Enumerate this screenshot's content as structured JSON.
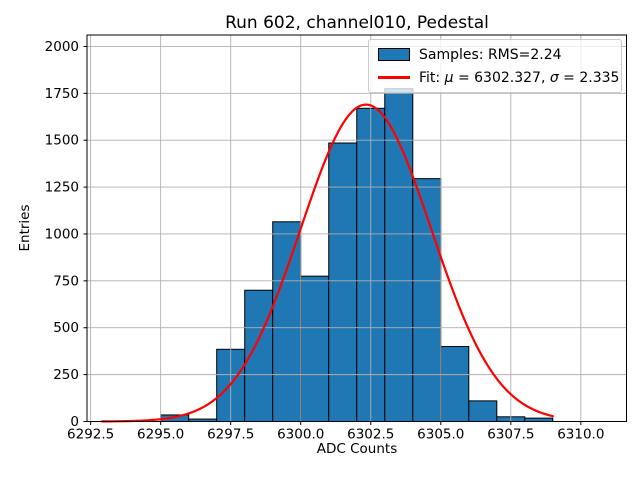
{
  "chart_data": {
    "type": "bar",
    "subtype": "histogram-with-gaussian-fit",
    "title": "Run 602, channel010, Pedestal",
    "xlabel": "ADC Counts",
    "ylabel": "Entries",
    "xlim": [
      6292.37,
      6311.63
    ],
    "ylim": [
      0,
      2061
    ],
    "xticks": [
      6292.5,
      6295.0,
      6297.5,
      6300.0,
      6302.5,
      6305.0,
      6307.5,
      6310.0
    ],
    "xtick_labels": [
      "6292.5",
      "6295.0",
      "6297.5",
      "6300.0",
      "6302.5",
      "6305.0",
      "6307.5",
      "6310.0"
    ],
    "yticks": [
      0,
      250,
      500,
      750,
      1000,
      1250,
      1500,
      1750,
      2000
    ],
    "ytick_labels": [
      "0",
      "250",
      "500",
      "750",
      "1000",
      "1250",
      "1500",
      "1750",
      "2000"
    ],
    "grid": true,
    "legend_position": "upper right",
    "histogram": {
      "bin_width": 1,
      "bin_left_edges": [
        6295,
        6296,
        6297,
        6298,
        6299,
        6300,
        6301,
        6302,
        6303,
        6304,
        6305,
        6306,
        6307,
        6308
      ],
      "counts": [
        35,
        13,
        385,
        700,
        1065,
        775,
        1485,
        1670,
        1775,
        1295,
        400,
        110,
        25,
        18
      ],
      "rms": 2.24
    },
    "fit": {
      "mu": 6302.327,
      "sigma": 2.335,
      "amplitude": 1690,
      "x_range": [
        6292.9,
        6309.0
      ]
    },
    "legend": {
      "samples_label": "Samples: RMS=2.24",
      "fit_label_parts": [
        "Fit: ",
        "μ",
        " = 6302.327, ",
        "σ",
        " = 2.335"
      ]
    },
    "colors": {
      "bar_fill": "#1f77b4",
      "bar_edge": "#000000",
      "fit_line": "#ff0000",
      "grid": "#b0b0b0",
      "spine": "#000000",
      "background": "#ffffff",
      "legend_edge": "#cccccc"
    }
  }
}
